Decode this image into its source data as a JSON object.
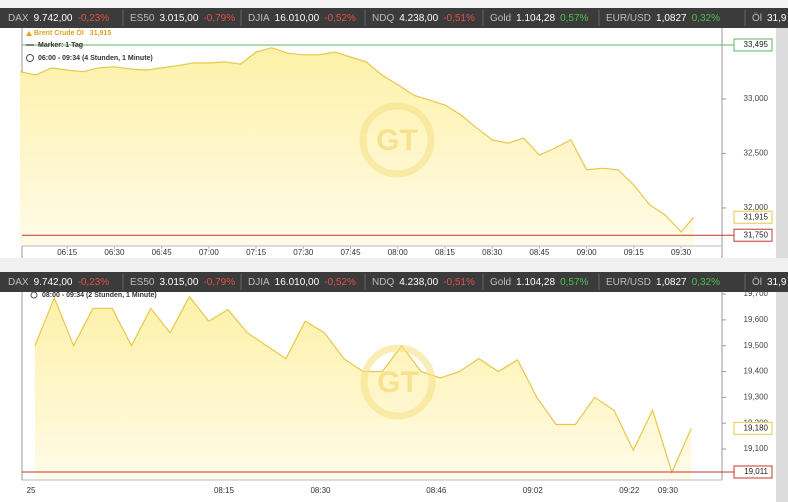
{
  "ticker": [
    {
      "name": "DAX",
      "value": "9.742,00",
      "change": "-0,23%",
      "color": "#e0524a"
    },
    {
      "name": "ES50",
      "value": "3.015,00",
      "change": "-0,79%",
      "color": "#e0524a"
    },
    {
      "name": "DJIA",
      "value": "16.010,00",
      "change": "-0,52%",
      "color": "#e0524a"
    },
    {
      "name": "NDQ",
      "value": "4.238,00",
      "change": "-0,51%",
      "color": "#e0524a"
    },
    {
      "name": "Gold",
      "value": "1.104,28",
      "change": "0,57%",
      "color": "#4cc24c"
    },
    {
      "name": "EUR/USD",
      "value": "1,0827",
      "change": "0,32%",
      "color": "#4cc24c"
    },
    {
      "name": "Öl",
      "value": "31,9"
    }
  ],
  "chart_data": [
    {
      "type": "area",
      "name": "Brent Crude Öl",
      "marker": "Marker: 1 Tag",
      "subtitle": "06:00 - 09:34 (4 Stunden, 1 Minute)",
      "color": "#e8c84a",
      "x": [
        "06:00",
        "06:05",
        "06:10",
        "06:15",
        "06:20",
        "06:25",
        "06:30",
        "06:35",
        "06:40",
        "06:45",
        "06:50",
        "06:55",
        "07:00",
        "07:05",
        "07:10",
        "07:15",
        "07:20",
        "07:25",
        "07:30",
        "07:35",
        "07:40",
        "07:45",
        "07:50",
        "07:55",
        "08:00",
        "08:05",
        "08:10",
        "08:15",
        "08:20",
        "08:25",
        "08:30",
        "08:35",
        "08:40",
        "08:45",
        "08:50",
        "08:55",
        "09:00",
        "09:05",
        "09:10",
        "09:15",
        "09:20",
        "09:25",
        "09:30",
        "09:34"
      ],
      "values": [
        33250,
        33220,
        33285,
        33265,
        33250,
        33285,
        33295,
        33275,
        33265,
        33285,
        33305,
        33330,
        33330,
        33340,
        33320,
        33430,
        33470,
        33420,
        33405,
        33405,
        33430,
        33385,
        33340,
        33220,
        33130,
        33035,
        32990,
        32945,
        32855,
        32735,
        32625,
        32595,
        32640,
        32485,
        32550,
        32625,
        32350,
        32365,
        32350,
        32210,
        32030,
        31935,
        31780,
        31915
      ],
      "xlim": [
        "06:00",
        "09:43"
      ],
      "xticks": [
        "06:15",
        "06:30",
        "06:45",
        "07:00",
        "07:15",
        "07:30",
        "07:45",
        "08:00",
        "08:15",
        "08:30",
        "08:45",
        "09:00",
        "09:15",
        "09:30"
      ],
      "ylim": [
        31541,
        33651
      ],
      "yticks": [
        {
          "value": 32000,
          "label": "32,000"
        },
        {
          "value": 32500,
          "label": "32,500"
        },
        {
          "value": 33000,
          "label": "33,000"
        }
      ],
      "current": {
        "value": 31915,
        "label": "31,915"
      },
      "reference_lines": [
        {
          "value": 33495,
          "label": "33,495",
          "color": "#5cb85c"
        },
        {
          "value": 31750,
          "label": "31,750",
          "color": "#c0392b"
        }
      ]
    },
    {
      "type": "area",
      "subtitle": "08:00 - 09:34 (2 Stunden, 1 Minute)",
      "color": "#e8c84a",
      "categories": [
        "25",
        null,
        null,
        null,
        null,
        null,
        null,
        null,
        null,
        null,
        "08:15",
        null,
        null,
        null,
        null,
        "08:30",
        null,
        null,
        null,
        null,
        null,
        "08:46",
        null,
        null,
        null,
        null,
        "09:02",
        null,
        null,
        null,
        null,
        "09:22",
        null,
        "09:30",
        null
      ],
      "values": [
        19500,
        19685,
        19500,
        19645,
        19645,
        19500,
        19645,
        19550,
        19690,
        19595,
        19640,
        19550,
        19500,
        19450,
        19595,
        19550,
        19450,
        19400,
        19400,
        19500,
        19400,
        19375,
        19400,
        19450,
        19400,
        19445,
        19300,
        19195,
        19195,
        19300,
        19250,
        19095,
        19250,
        19010,
        19180
      ],
      "ylim": [
        18980,
        19708
      ],
      "yticks": [
        {
          "value": 19100,
          "label": "19,100"
        },
        {
          "value": 19200,
          "label": "19,200"
        },
        {
          "value": 19300,
          "label": "19,300"
        },
        {
          "value": 19400,
          "label": "19,400"
        },
        {
          "value": 19500,
          "label": "19,500"
        },
        {
          "value": 19600,
          "label": "19,600"
        },
        {
          "value": 19700,
          "label": "19,700"
        }
      ],
      "current": {
        "value": 19180,
        "label": "19,180"
      },
      "reference_lines": [
        {
          "value": 19011,
          "label": "19,011",
          "color": "#c0392b"
        }
      ]
    }
  ]
}
